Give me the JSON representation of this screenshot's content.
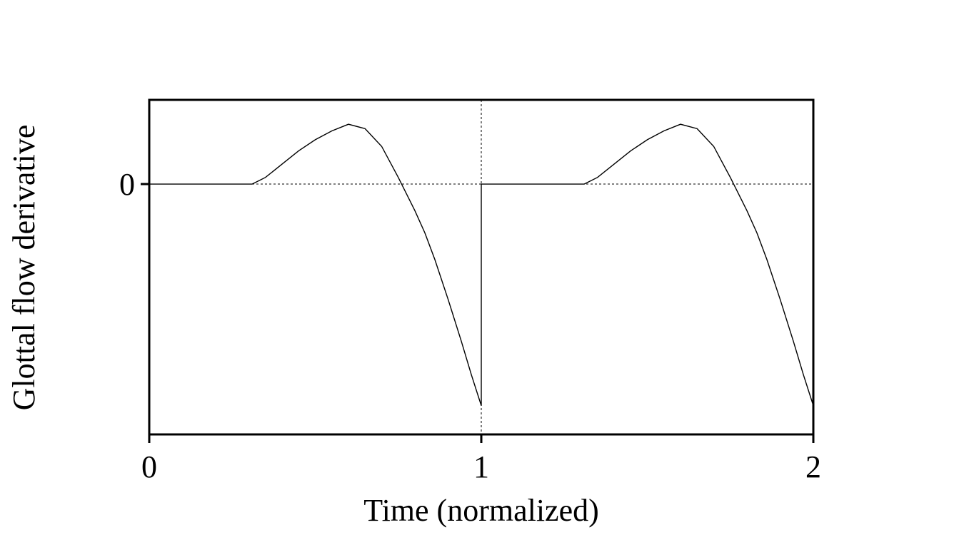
{
  "chart_data": {
    "type": "line",
    "title": "",
    "xlabel": "Time (normalized)",
    "ylabel": "Glottal flow derivative",
    "xlim": [
      0,
      2
    ],
    "ylim": [
      -1.13,
      0.38
    ],
    "x_ticks": [
      0,
      1,
      2
    ],
    "x_tick_labels": [
      "0",
      "1",
      "2"
    ],
    "y_ticks": [
      0
    ],
    "y_tick_labels": [
      "0"
    ],
    "grid": false,
    "legend": "none",
    "reference_lines": [
      {
        "orientation": "horizontal",
        "value": 0,
        "style": "dotted"
      },
      {
        "orientation": "vertical",
        "value": 1,
        "style": "dotted"
      }
    ],
    "series": [
      {
        "x": [
          0,
          0.31,
          0.35,
          0.4,
          0.45,
          0.5,
          0.55,
          0.6,
          0.65,
          0.7,
          0.75,
          0.8,
          0.83,
          0.86,
          0.9,
          0.94,
          0.97,
          1.0,
          1.0,
          1.31,
          1.35,
          1.4,
          1.45,
          1.5,
          1.55,
          1.6,
          1.65,
          1.7,
          1.75,
          1.8,
          1.83,
          1.86,
          1.9,
          1.94,
          1.97,
          2.0
        ],
        "y": [
          0,
          0,
          0.03,
          0.09,
          0.15,
          0.2,
          0.24,
          0.27,
          0.25,
          0.17,
          0.03,
          -0.12,
          -0.22,
          -0.34,
          -0.52,
          -0.71,
          -0.86,
          -1.0,
          0,
          0,
          0.03,
          0.09,
          0.15,
          0.2,
          0.24,
          0.27,
          0.25,
          0.17,
          0.03,
          -0.12,
          -0.22,
          -0.34,
          -0.52,
          -0.71,
          -0.86,
          -1.0
        ]
      }
    ]
  }
}
